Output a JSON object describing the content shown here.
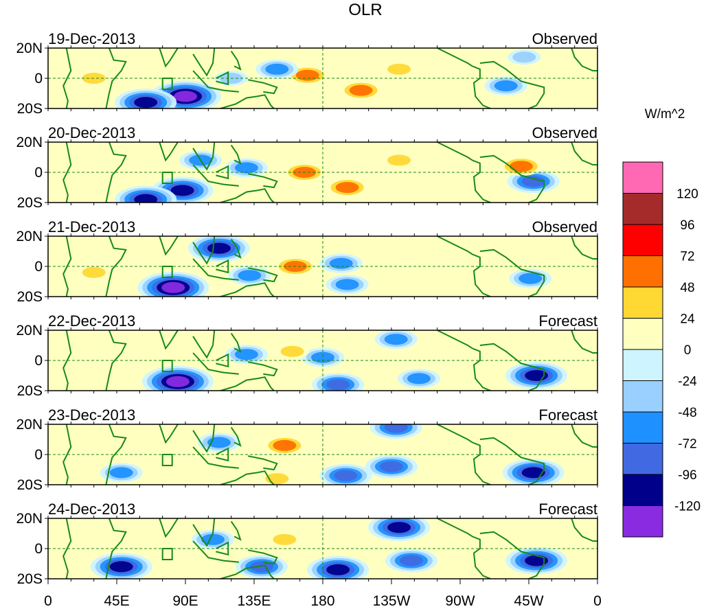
{
  "chart_data": {
    "type": "heatmap",
    "title": "OLR",
    "colorbar": {
      "unit_label": "W/m^2",
      "tick_labels": [
        "120",
        "96",
        "72",
        "48",
        "24",
        "0",
        "-24",
        "-48",
        "-72",
        "-96",
        "-120"
      ],
      "bins": [
        {
          "range": "> 120",
          "color": "#ff69b4"
        },
        {
          "range": "96 to 120",
          "color": "#a52a2a"
        },
        {
          "range": "72 to 96",
          "color": "#ff0000"
        },
        {
          "range": "48 to 72",
          "color": "#ff7000"
        },
        {
          "range": "24 to 48",
          "color": "#ffd834"
        },
        {
          "range": "0 to 24",
          "color": "#ffffc0"
        },
        {
          "range": "-24 to 0",
          "color": "#cdf4ff"
        },
        {
          "range": "-48 to -24",
          "color": "#9ad0ff"
        },
        {
          "range": "-72 to -48",
          "color": "#1e90ff"
        },
        {
          "range": "-96 to -72",
          "color": "#4169e1"
        },
        {
          "range": "-120 to -96",
          "color": "#00008b"
        },
        {
          "range": "< -120",
          "color": "#8a2be2"
        }
      ]
    },
    "x_ticks": [
      "0",
      "45E",
      "90E",
      "135E",
      "180",
      "135W",
      "90W",
      "45W",
      "0"
    ],
    "y_ticks": [
      "20N",
      "0",
      "20S"
    ],
    "lon_range": [
      0,
      360
    ],
    "lat_range": [
      -20,
      20
    ],
    "panels": [
      {
        "date": "19-Dec-2013",
        "label": "Observed",
        "features": [
          {
            "lon": 90,
            "lat": -12,
            "value": -125
          },
          {
            "lon": 64,
            "lat": -16,
            "value": -110
          },
          {
            "lon": 170,
            "lat": 2,
            "value": 70
          },
          {
            "lon": 205,
            "lat": -8,
            "value": 60
          },
          {
            "lon": 150,
            "lat": 6,
            "value": -60
          },
          {
            "lon": 300,
            "lat": -5,
            "value": -55
          },
          {
            "lon": 312,
            "lat": 14,
            "value": -40
          },
          {
            "lon": 230,
            "lat": 6,
            "value": 30
          },
          {
            "lon": 30,
            "lat": 0,
            "value": 30
          },
          {
            "lon": 120,
            "lat": 0,
            "value": -40
          }
        ]
      },
      {
        "date": "20-Dec-2013",
        "label": "Observed",
        "features": [
          {
            "lon": 88,
            "lat": -12,
            "value": -110
          },
          {
            "lon": 64,
            "lat": -18,
            "value": -110
          },
          {
            "lon": 168,
            "lat": 0,
            "value": 60
          },
          {
            "lon": 196,
            "lat": -10,
            "value": 55
          },
          {
            "lon": 130,
            "lat": 3,
            "value": -70
          },
          {
            "lon": 318,
            "lat": -6,
            "value": -90
          },
          {
            "lon": 310,
            "lat": 4,
            "value": 55
          },
          {
            "lon": 100,
            "lat": 8,
            "value": -60
          },
          {
            "lon": 230,
            "lat": 8,
            "value": 25
          }
        ]
      },
      {
        "date": "21-Dec-2013",
        "label": "Observed",
        "features": [
          {
            "lon": 82,
            "lat": -14,
            "value": -125
          },
          {
            "lon": 162,
            "lat": 0,
            "value": 65
          },
          {
            "lon": 112,
            "lat": 12,
            "value": -100
          },
          {
            "lon": 196,
            "lat": -12,
            "value": -70
          },
          {
            "lon": 316,
            "lat": -8,
            "value": -70
          },
          {
            "lon": 132,
            "lat": -6,
            "value": -60
          },
          {
            "lon": 192,
            "lat": 2,
            "value": -60
          },
          {
            "lon": 30,
            "lat": -4,
            "value": 45
          }
        ]
      },
      {
        "date": "22-Dec-2013",
        "label": "Forecast",
        "features": [
          {
            "lon": 85,
            "lat": -14,
            "value": -130
          },
          {
            "lon": 320,
            "lat": -10,
            "value": -110
          },
          {
            "lon": 190,
            "lat": -16,
            "value": -90
          },
          {
            "lon": 228,
            "lat": 14,
            "value": -70
          },
          {
            "lon": 180,
            "lat": 2,
            "value": -60
          },
          {
            "lon": 243,
            "lat": -12,
            "value": -70
          },
          {
            "lon": 130,
            "lat": 4,
            "value": -70
          },
          {
            "lon": 160,
            "lat": 6,
            "value": 30
          }
        ]
      },
      {
        "date": "23-Dec-2013",
        "label": "Forecast",
        "features": [
          {
            "lon": 318,
            "lat": -12,
            "value": -100
          },
          {
            "lon": 225,
            "lat": -8,
            "value": -90
          },
          {
            "lon": 228,
            "lat": 18,
            "value": -95
          },
          {
            "lon": 195,
            "lat": -14,
            "value": -80
          },
          {
            "lon": 48,
            "lat": -12,
            "value": -70
          },
          {
            "lon": 112,
            "lat": 8,
            "value": -60
          },
          {
            "lon": 155,
            "lat": 6,
            "value": 50
          },
          {
            "lon": 150,
            "lat": -16,
            "value": 30
          }
        ]
      },
      {
        "date": "24-Dec-2013",
        "label": "Forecast",
        "features": [
          {
            "lon": 320,
            "lat": -8,
            "value": -100
          },
          {
            "lon": 230,
            "lat": 14,
            "value": -100
          },
          {
            "lon": 190,
            "lat": -14,
            "value": -110
          },
          {
            "lon": 48,
            "lat": -12,
            "value": -100
          },
          {
            "lon": 238,
            "lat": -8,
            "value": -80
          },
          {
            "lon": 108,
            "lat": 6,
            "value": -60
          },
          {
            "lon": 140,
            "lat": -12,
            "value": -80
          },
          {
            "lon": 155,
            "lat": 6,
            "value": 25
          }
        ]
      }
    ]
  }
}
